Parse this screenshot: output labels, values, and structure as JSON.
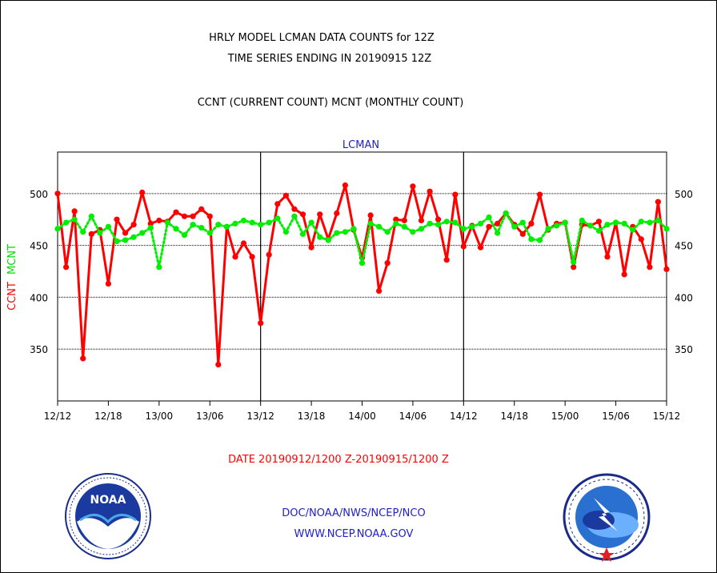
{
  "chart_data": {
    "type": "line",
    "title_lines": [
      "HRLY MODEL LCMAN DATA COUNTS for 12Z",
      "TIME SERIES ENDING IN 20190915 12Z",
      "CCNT (CURRENT COUNT) MCNT (MONTHLY COUNT)"
    ],
    "subtitle": "LCMAN",
    "ylabel_ccnt": "CCNT",
    "ylabel_mcnt": "MCNT",
    "xlabel": "DATE 20190912/1200 Z-20190915/1200 Z",
    "ylim": [
      300,
      540
    ],
    "yticks": [
      "350",
      "400",
      "450",
      "500"
    ],
    "xticks": [
      "12/12",
      "12/18",
      "13/00",
      "13/06",
      "13/12",
      "13/18",
      "14/00",
      "14/06",
      "14/12",
      "14/18",
      "15/00",
      "15/06",
      "15/12"
    ],
    "grid": "horizontal dashed",
    "series": [
      {
        "color": "#ff0000",
        "style": "solid",
        "x": [
          0,
          1,
          2,
          3,
          4,
          5,
          6,
          7,
          8,
          9,
          10,
          11,
          12,
          13,
          14,
          15,
          16,
          17,
          18,
          19,
          20,
          21,
          22,
          23,
          24,
          25,
          26,
          27,
          28,
          29,
          30,
          31,
          32,
          33,
          34,
          35,
          36,
          37,
          38,
          39,
          40,
          41,
          42,
          43,
          44,
          45,
          46,
          47,
          48,
          49,
          50,
          51,
          52,
          53,
          54,
          55,
          56,
          57,
          58,
          59,
          60,
          61,
          62,
          63,
          64,
          65,
          66,
          67,
          68,
          69,
          70,
          71,
          72
        ],
        "values": [
          500,
          429,
          483,
          341,
          461,
          465,
          413,
          475,
          462,
          470,
          501,
          471,
          474,
          473,
          482,
          478,
          478,
          485,
          478,
          335,
          468,
          439,
          452,
          439,
          375,
          441,
          490,
          498,
          485,
          480,
          448,
          480,
          456,
          481,
          508,
          465,
          438,
          479,
          406,
          433,
          475,
          474,
          507,
          474,
          502,
          475,
          436,
          499,
          449,
          469,
          448,
          468,
          471,
          481,
          470,
          461,
          471,
          499,
          465,
          471,
          472,
          429,
          470,
          469,
          473,
          439,
          472,
          422,
          468,
          456,
          429,
          492,
          427
        ]
      },
      {
        "color": "#00ee00",
        "style": "dotted",
        "x": [
          0,
          1,
          2,
          3,
          4,
          5,
          6,
          7,
          8,
          9,
          10,
          11,
          12,
          13,
          14,
          15,
          16,
          17,
          18,
          19,
          20,
          21,
          22,
          23,
          24,
          25,
          26,
          27,
          28,
          29,
          30,
          31,
          32,
          33,
          34,
          35,
          36,
          37,
          38,
          39,
          40,
          41,
          42,
          43,
          44,
          45,
          46,
          47,
          48,
          49,
          50,
          51,
          52,
          53,
          54,
          55,
          56,
          57,
          58,
          59,
          60,
          61,
          62,
          63,
          64,
          65,
          66,
          67,
          68,
          69,
          70,
          71,
          72
        ],
        "values": [
          466,
          472,
          475,
          463,
          478,
          462,
          468,
          454,
          455,
          458,
          462,
          467,
          429,
          472,
          466,
          460,
          470,
          467,
          462,
          470,
          468,
          471,
          474,
          472,
          470,
          472,
          476,
          463,
          478,
          461,
          472,
          458,
          455,
          462,
          463,
          466,
          433,
          471,
          468,
          463,
          471,
          468,
          463,
          466,
          471,
          470,
          473,
          472,
          466,
          468,
          471,
          477,
          462,
          481,
          468,
          472,
          456,
          455,
          466,
          469,
          472,
          434,
          474,
          469,
          464,
          470,
          472,
          471,
          465,
          473,
          472,
          474,
          466
        ]
      }
    ]
  },
  "footer": {
    "org_line": "DOC/NOAA/NWS/NCEP/NCO",
    "url_line": "WWW.NCEP.NOAA.GOV",
    "noaa_logo_text": "NOAA",
    "nws_logo_text": "NATIONAL WEATHER SERVICE"
  },
  "colors": {
    "ccnt": "#ff0000",
    "mcnt": "#00ee00",
    "text_dark": "#000000",
    "text_blue": "#2020cc",
    "xlabel": "#ff0000"
  }
}
